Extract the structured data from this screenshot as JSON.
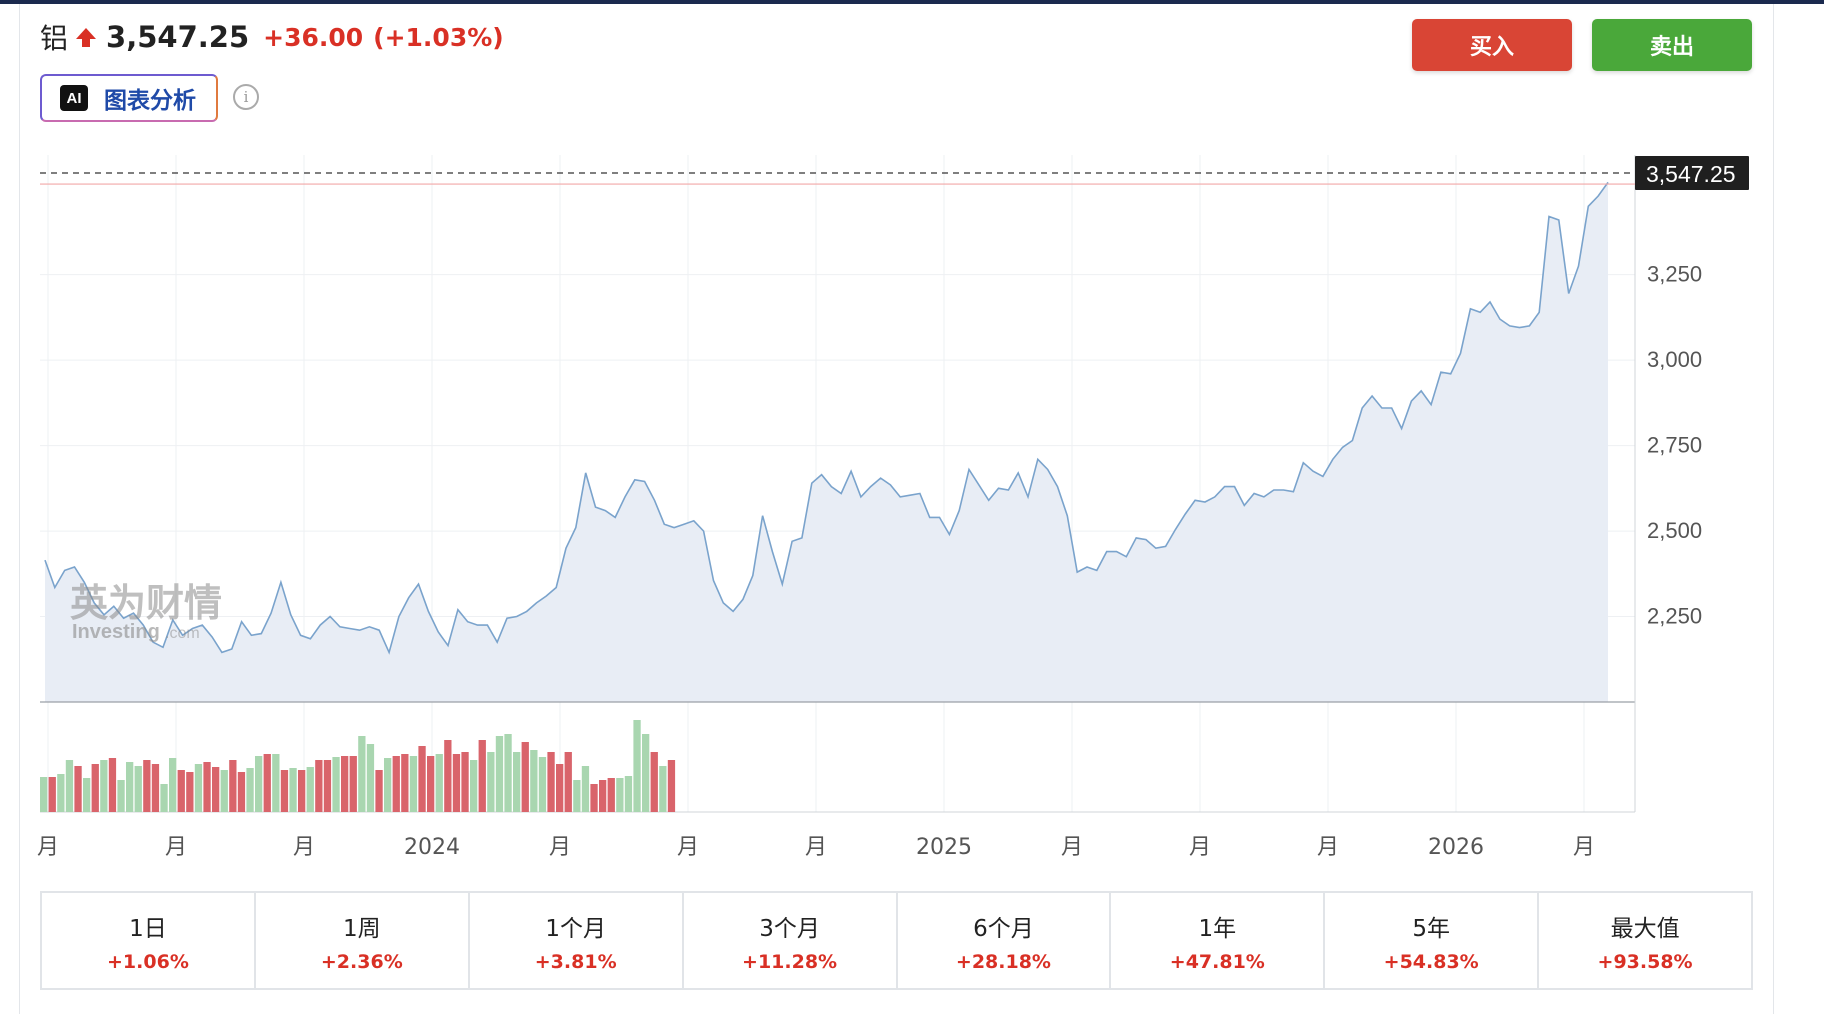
{
  "header": {
    "name": "铝",
    "price": "3,547.25",
    "change": "+36.00",
    "change_pct": "(+1.03%)",
    "up_color": "#d93025"
  },
  "ai_button": {
    "badge": "AI",
    "label": "图表分析"
  },
  "info_icon": "i",
  "actions": {
    "buy": "买入",
    "sell": "卖出",
    "buy_color": "#d94535",
    "sell_color": "#4aa83a"
  },
  "watermark": {
    "cn": "英为财情",
    "en": "Investing",
    "suffix": ".com"
  },
  "chart_data": {
    "type": "area",
    "ylim": [
      2000,
      3600
    ],
    "yticks": [
      2250,
      2500,
      2750,
      3000,
      3250
    ],
    "ytick_labels": [
      "2,250",
      "2,500",
      "2,750",
      "3,000",
      "3,250"
    ],
    "last_price_label": "3,547.25",
    "last_price": 3547.25,
    "high_line": 3515,
    "x_tick_labels": [
      "月",
      "月",
      "月",
      "2024",
      "月",
      "月",
      "月",
      "2025",
      "月",
      "月",
      "月",
      "2026",
      "月"
    ],
    "prices": [
      2415,
      2335,
      2385,
      2395,
      2350,
      2290,
      2255,
      2280,
      2245,
      2260,
      2225,
      2175,
      2160,
      2240,
      2195,
      2215,
      2225,
      2190,
      2145,
      2155,
      2235,
      2195,
      2200,
      2260,
      2350,
      2255,
      2195,
      2185,
      2225,
      2250,
      2220,
      2215,
      2210,
      2220,
      2210,
      2145,
      2250,
      2305,
      2345,
      2265,
      2205,
      2165,
      2270,
      2235,
      2225,
      2225,
      2175,
      2245,
      2250,
      2265,
      2290,
      2310,
      2335,
      2450,
      2510,
      2670,
      2570,
      2560,
      2540,
      2600,
      2650,
      2645,
      2590,
      2520,
      2510,
      2520,
      2530,
      2500,
      2355,
      2290,
      2265,
      2300,
      2370,
      2545,
      2440,
      2345,
      2470,
      2480,
      2640,
      2665,
      2630,
      2610,
      2675,
      2600,
      2630,
      2655,
      2635,
      2600,
      2605,
      2610,
      2540,
      2540,
      2490,
      2560,
      2680,
      2635,
      2590,
      2625,
      2620,
      2670,
      2600,
      2710,
      2680,
      2630,
      2545,
      2380,
      2395,
      2385,
      2440,
      2440,
      2425,
      2480,
      2475,
      2450,
      2455,
      2505,
      2550,
      2590,
      2585,
      2600,
      2630,
      2630,
      2575,
      2610,
      2600,
      2620,
      2620,
      2615,
      2700,
      2675,
      2660,
      2710,
      2745,
      2765,
      2860,
      2895,
      2860,
      2860,
      2800,
      2880,
      2910,
      2870,
      2965,
      2960,
      3020,
      3150,
      3140,
      3170,
      3120,
      3100,
      3095,
      3100,
      3140,
      3420,
      3410,
      3195,
      3275,
      3450,
      3480,
      3520
    ],
    "volume": [
      {
        "v": 35,
        "up": true
      },
      {
        "v": 35,
        "up": false
      },
      {
        "v": 38,
        "up": true
      },
      {
        "v": 52,
        "up": true
      },
      {
        "v": 46,
        "up": false
      },
      {
        "v": 34,
        "up": true
      },
      {
        "v": 48,
        "up": false
      },
      {
        "v": 52,
        "up": true
      },
      {
        "v": 54,
        "up": false
      },
      {
        "v": 32,
        "up": true
      },
      {
        "v": 50,
        "up": true
      },
      {
        "v": 46,
        "up": true
      },
      {
        "v": 52,
        "up": false
      },
      {
        "v": 48,
        "up": false
      },
      {
        "v": 28,
        "up": true
      },
      {
        "v": 54,
        "up": true
      },
      {
        "v": 42,
        "up": false
      },
      {
        "v": 40,
        "up": false
      },
      {
        "v": 48,
        "up": true
      },
      {
        "v": 50,
        "up": false
      },
      {
        "v": 45,
        "up": false
      },
      {
        "v": 42,
        "up": true
      },
      {
        "v": 52,
        "up": false
      },
      {
        "v": 40,
        "up": false
      },
      {
        "v": 44,
        "up": true
      },
      {
        "v": 56,
        "up": true
      },
      {
        "v": 58,
        "up": false
      },
      {
        "v": 58,
        "up": true
      },
      {
        "v": 42,
        "up": false
      },
      {
        "v": 44,
        "up": true
      },
      {
        "v": 42,
        "up": false
      },
      {
        "v": 45,
        "up": true
      },
      {
        "v": 52,
        "up": false
      },
      {
        "v": 52,
        "up": false
      },
      {
        "v": 55,
        "up": true
      },
      {
        "v": 56,
        "up": false
      },
      {
        "v": 56,
        "up": false
      },
      {
        "v": 76,
        "up": true
      },
      {
        "v": 68,
        "up": true
      },
      {
        "v": 42,
        "up": false
      },
      {
        "v": 54,
        "up": true
      },
      {
        "v": 56,
        "up": false
      },
      {
        "v": 58,
        "up": false
      },
      {
        "v": 56,
        "up": true
      },
      {
        "v": 66,
        "up": false
      },
      {
        "v": 56,
        "up": false
      },
      {
        "v": 58,
        "up": true
      },
      {
        "v": 72,
        "up": false
      },
      {
        "v": 58,
        "up": false
      },
      {
        "v": 60,
        "up": false
      },
      {
        "v": 52,
        "up": true
      },
      {
        "v": 72,
        "up": false
      },
      {
        "v": 60,
        "up": true
      },
      {
        "v": 76,
        "up": true
      },
      {
        "v": 78,
        "up": true
      },
      {
        "v": 60,
        "up": true
      },
      {
        "v": 70,
        "up": false
      },
      {
        "v": 62,
        "up": true
      },
      {
        "v": 55,
        "up": true
      },
      {
        "v": 60,
        "up": false
      },
      {
        "v": 48,
        "up": false
      },
      {
        "v": 60,
        "up": false
      },
      {
        "v": 32,
        "up": true
      },
      {
        "v": 46,
        "up": true
      },
      {
        "v": 28,
        "up": false
      },
      {
        "v": 32,
        "up": false
      },
      {
        "v": 34,
        "up": false
      },
      {
        "v": 34,
        "up": true
      },
      {
        "v": 36,
        "up": true
      },
      {
        "v": 92,
        "up": true
      },
      {
        "v": 78,
        "up": true
      },
      {
        "v": 60,
        "up": false
      },
      {
        "v": 46,
        "up": true
      },
      {
        "v": 52,
        "up": false
      }
    ],
    "volume_layout": "note: bar values are relative heights"
  },
  "periods": [
    {
      "label": "1日",
      "value": "+1.06%"
    },
    {
      "label": "1周",
      "value": "+2.36%"
    },
    {
      "label": "1个月",
      "value": "+3.81%"
    },
    {
      "label": "3个月",
      "value": "+11.28%"
    },
    {
      "label": "6个月",
      "value": "+28.18%"
    },
    {
      "label": "1年",
      "value": "+47.81%"
    },
    {
      "label": "5年",
      "value": "+54.83%"
    },
    {
      "label": "最大值",
      "value": "+93.58%"
    }
  ]
}
